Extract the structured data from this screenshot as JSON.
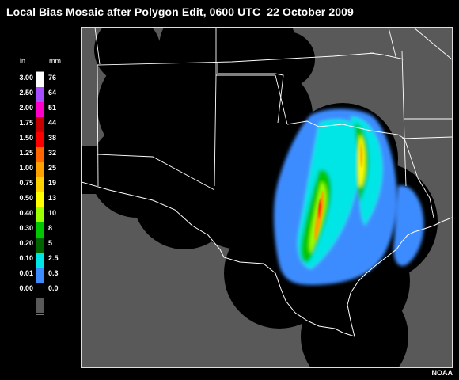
{
  "title": "Local Bias Mosaic after Polygon Edit, 0600 UTC  22 October 2009",
  "legend": {
    "unit_in": "in",
    "unit_mm": "mm",
    "rows": [
      {
        "in": "3.00",
        "mm": "76",
        "color": "#ffffff"
      },
      {
        "in": "2.50",
        "mm": "64",
        "color": "#a64dff"
      },
      {
        "in": "2.00",
        "mm": "51",
        "color": "#ff00c8"
      },
      {
        "in": "1.75",
        "mm": "44",
        "color": "#c80000"
      },
      {
        "in": "1.50",
        "mm": "38",
        "color": "#ff0000"
      },
      {
        "in": "1.25",
        "mm": "32",
        "color": "#ff6600"
      },
      {
        "in": "1.00",
        "mm": "25",
        "color": "#ffa000"
      },
      {
        "in": "0.75",
        "mm": "19",
        "color": "#ffd200"
      },
      {
        "in": "0.50",
        "mm": "13",
        "color": "#ffff00"
      },
      {
        "in": "0.40",
        "mm": "10",
        "color": "#9cff00"
      },
      {
        "in": "0.30",
        "mm": "8",
        "color": "#00c800"
      },
      {
        "in": "0.20",
        "mm": "5",
        "color": "#006400"
      },
      {
        "in": "0.10",
        "mm": "2.5",
        "color": "#00e6e6"
      },
      {
        "in": "0.01",
        "mm": "0.3",
        "color": "#3c8cff"
      },
      {
        "in": "0.00",
        "mm": "0.0",
        "color": "#000000"
      },
      {
        "in": "",
        "mm": "",
        "color": "#595959"
      }
    ]
  },
  "map": {
    "background_color": "#595959",
    "boundary_color": "#ffffff"
  },
  "credit": "NOAA"
}
